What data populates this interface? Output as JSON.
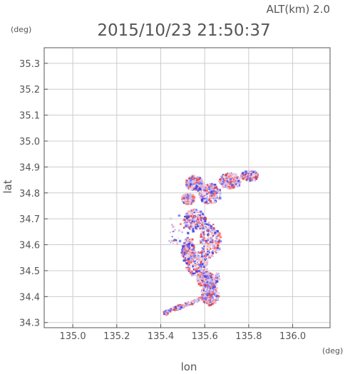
{
  "chart_data": {
    "type": "scatter",
    "title": "2015/10/23 21:50:37",
    "subtitle": "ALT(km) 2.0",
    "xlabel": "lon",
    "ylabel": "lat",
    "x_unit": "(deg)",
    "y_unit": "(deg)",
    "xlim": [
      134.87,
      136.17
    ],
    "ylim": [
      34.28,
      35.36
    ],
    "grid": true,
    "legend": "none",
    "x_ticks": [
      135.0,
      135.2,
      135.4,
      135.6,
      135.8,
      136.0
    ],
    "y_ticks": [
      34.3,
      34.4,
      34.5,
      34.6,
      34.7,
      34.8,
      34.9,
      35.0,
      35.1,
      35.2,
      35.3
    ],
    "x_tick_labels": [
      "135.0",
      "135.2",
      "135.4",
      "135.6",
      "135.8",
      "136.0"
    ],
    "y_tick_labels": [
      "34.3",
      "34.4",
      "34.5",
      "34.6",
      "34.7",
      "34.8",
      "34.9",
      "35.0",
      "35.1",
      "35.2",
      "35.3"
    ],
    "colors": {
      "positive": "#ff6f6f",
      "negative": "#6f6fff",
      "neutral": "#dcc8e8",
      "grid": "#cccccc",
      "axis": "#555555"
    },
    "clusters": [
      {
        "type": "blob",
        "cx": 135.62,
        "cy": 34.62,
        "rx": 0.05,
        "ry": 0.07,
        "rot": 0
      },
      {
        "type": "blob",
        "cx": 135.55,
        "cy": 34.7,
        "rx": 0.05,
        "ry": 0.04,
        "rot": 20
      },
      {
        "type": "blob",
        "cx": 135.56,
        "cy": 34.53,
        "rx": 0.05,
        "ry": 0.05,
        "rot": 0
      },
      {
        "type": "blob",
        "cx": 135.52,
        "cy": 34.58,
        "rx": 0.03,
        "ry": 0.05,
        "rot": 0
      },
      {
        "type": "blob",
        "cx": 135.6,
        "cy": 34.47,
        "rx": 0.04,
        "ry": 0.03,
        "rot": 0
      },
      {
        "type": "blob",
        "cx": 135.62,
        "cy": 34.41,
        "rx": 0.04,
        "ry": 0.04,
        "rot": 0
      },
      {
        "type": "blob",
        "cx": 135.62,
        "cy": 34.8,
        "rx": 0.05,
        "ry": 0.04,
        "rot": 0
      },
      {
        "type": "blob",
        "cx": 135.71,
        "cy": 34.85,
        "rx": 0.05,
        "ry": 0.03,
        "rot": 0
      },
      {
        "type": "blob",
        "cx": 135.8,
        "cy": 34.87,
        "rx": 0.04,
        "ry": 0.02,
        "rot": 0
      },
      {
        "type": "blob",
        "cx": 135.55,
        "cy": 34.84,
        "rx": 0.04,
        "ry": 0.03,
        "rot": 0
      },
      {
        "type": "blob",
        "cx": 135.52,
        "cy": 34.78,
        "rx": 0.03,
        "ry": 0.02,
        "rot": 0
      },
      {
        "type": "line",
        "x1": 135.41,
        "y1": 34.34,
        "x2": 135.6,
        "y2": 34.4,
        "w": 0.014
      },
      {
        "type": "line",
        "x1": 135.6,
        "y1": 34.4,
        "x2": 135.66,
        "y2": 34.49,
        "w": 0.02
      },
      {
        "type": "sparse",
        "cx": 135.49,
        "cy": 34.66,
        "rx": 0.06,
        "ry": 0.06
      }
    ]
  }
}
